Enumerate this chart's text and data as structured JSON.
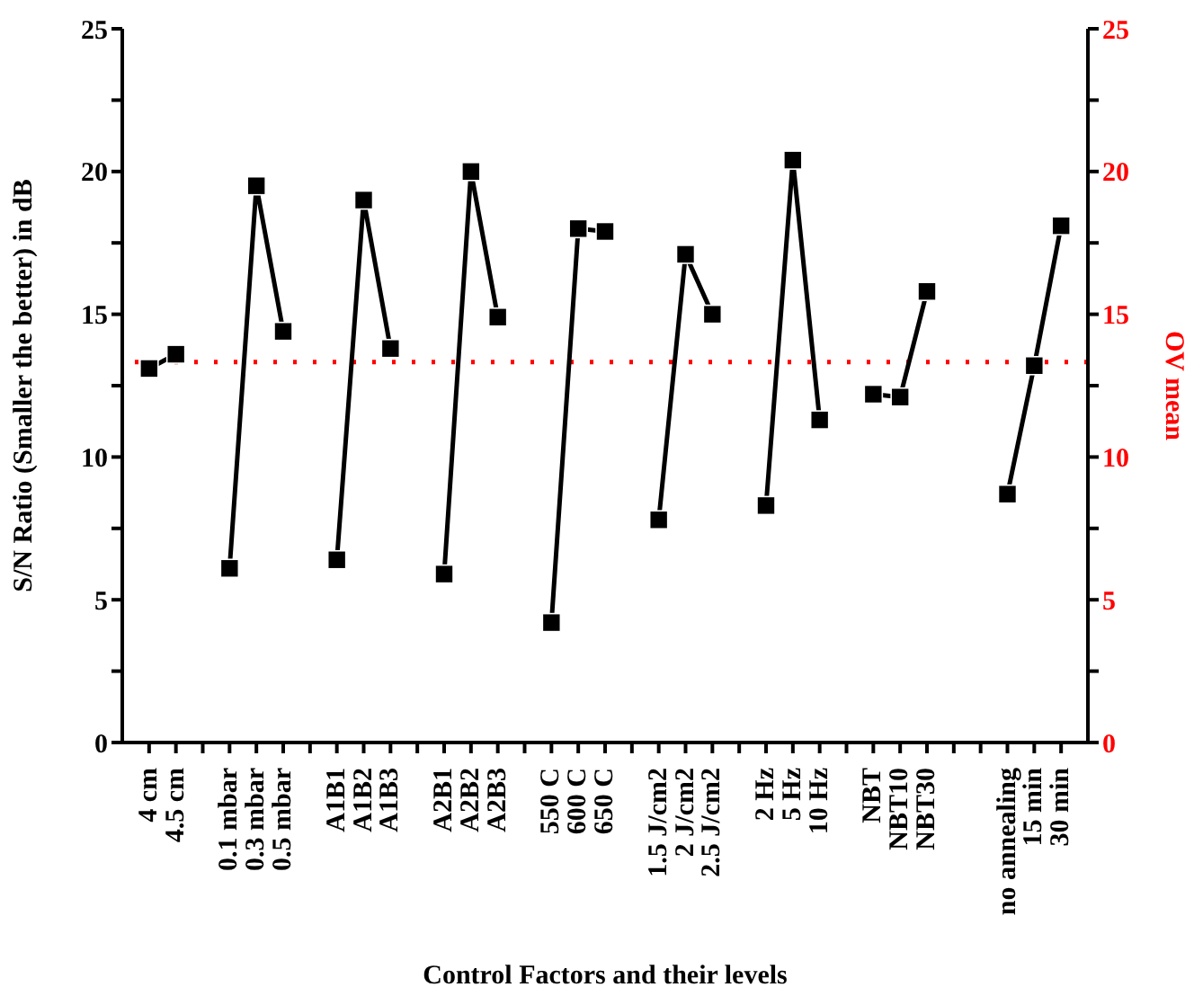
{
  "chart_data": {
    "type": "line",
    "xlabel": "Control Factors and their levels",
    "ylabel": "S/N Ratio (Smaller the better)  in dB",
    "y2label": "OV mean",
    "categories": [
      "4 cm",
      "4.5 cm",
      null,
      "0.1 mbar",
      "0.3 mbar",
      "0.5 mbar",
      null,
      "A1B1",
      "A1B2",
      "A1B3",
      null,
      "A2B1",
      "A2B2",
      "A2B3",
      null,
      "550 C",
      "600 C",
      "650 C",
      null,
      "1.5 J/cm2",
      "2 J/cm2",
      "2.5 J/cm2",
      null,
      "2 Hz",
      "5 Hz",
      "10 Hz",
      null,
      "NBT",
      "NBT10",
      "NBT30",
      null,
      null,
      "no annealing",
      "15 min",
      "30 min"
    ],
    "series": [
      {
        "color": "#000000",
        "values": [
          13.1,
          13.6,
          null,
          6.1,
          19.5,
          14.4,
          null,
          6.4,
          19.0,
          13.8,
          null,
          5.9,
          20.0,
          14.9,
          null,
          4.2,
          18.0,
          17.9,
          null,
          7.8,
          17.1,
          15.0,
          null,
          8.3,
          20.4,
          11.3,
          null,
          12.2,
          12.1,
          15.8,
          null,
          null,
          8.7,
          13.2,
          18.1
        ]
      }
    ],
    "ylim": [
      0,
      25
    ],
    "yticks": [
      0,
      {
        "value": 2.5,
        "label": null
      },
      5,
      {
        "value": 7.5,
        "label": null
      },
      10,
      {
        "value": 12.5,
        "label": null
      },
      15,
      {
        "value": 17.5,
        "label": null
      },
      20,
      {
        "value": 22.5,
        "label": null
      },
      25
    ],
    "y2lim": [
      0,
      25
    ],
    "y2ticks": [
      0,
      {
        "value": 2.5,
        "label": null
      },
      5,
      {
        "value": 7.5,
        "label": null
      },
      10,
      {
        "value": 12.5,
        "label": null
      },
      15,
      {
        "value": 17.5,
        "label": null
      },
      20,
      {
        "value": 22.5,
        "label": null
      },
      25
    ],
    "ref_lines": [
      {
        "axis": "y2",
        "value": 13.33,
        "color": "#ff0000",
        "line_style": "dotted"
      }
    ],
    "marker": "square",
    "line_style": "solid",
    "grid": false,
    "legend": false
  }
}
